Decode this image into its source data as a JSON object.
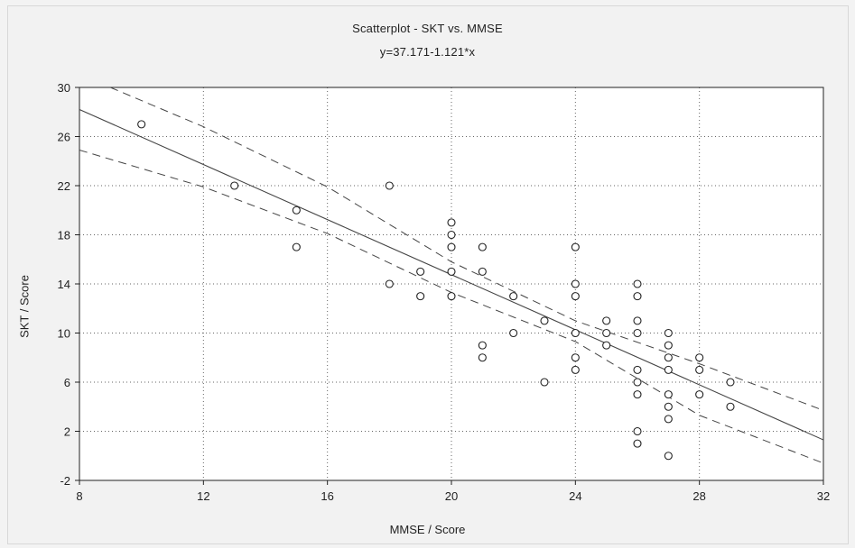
{
  "chart_data": {
    "type": "scatter",
    "title": "Scatterplot - SKT vs. MMSE",
    "subtitle": "y=37.171-1.121*x",
    "xlabel": "MMSE / Score",
    "ylabel": "SKT / Score",
    "xlim": [
      8,
      32
    ],
    "ylim": [
      -2,
      30
    ],
    "xticks": [
      8,
      12,
      16,
      20,
      24,
      28,
      32
    ],
    "yticks": [
      -2,
      2,
      6,
      10,
      14,
      18,
      22,
      26,
      30
    ],
    "grid": true,
    "regression": {
      "intercept": 37.171,
      "slope": -1.121
    },
    "confidence_band": {
      "upper": [
        [
          9,
          30.0
        ],
        [
          12,
          26.8
        ],
        [
          16,
          21.9
        ],
        [
          20,
          15.8
        ],
        [
          24,
          11.0
        ],
        [
          28,
          7.5
        ],
        [
          32,
          3.7
        ]
      ],
      "lower": [
        [
          8,
          24.9
        ],
        [
          12,
          21.9
        ],
        [
          16,
          18.1
        ],
        [
          20,
          13.3
        ],
        [
          24,
          9.3
        ],
        [
          28,
          3.3
        ],
        [
          32,
          -0.6
        ]
      ]
    },
    "points": [
      [
        10,
        27
      ],
      [
        13,
        22
      ],
      [
        15,
        20
      ],
      [
        15,
        17
      ],
      [
        18,
        22
      ],
      [
        18,
        14
      ],
      [
        19,
        15
      ],
      [
        19,
        13
      ],
      [
        20,
        19
      ],
      [
        20,
        18
      ],
      [
        20,
        17
      ],
      [
        20,
        15
      ],
      [
        20,
        13
      ],
      [
        21,
        17
      ],
      [
        21,
        15
      ],
      [
        21,
        9
      ],
      [
        21,
        8
      ],
      [
        22,
        13
      ],
      [
        22,
        10
      ],
      [
        23,
        11
      ],
      [
        23,
        6
      ],
      [
        24,
        17
      ],
      [
        24,
        14
      ],
      [
        24,
        13
      ],
      [
        24,
        10
      ],
      [
        24,
        8
      ],
      [
        24,
        7
      ],
      [
        25,
        11
      ],
      [
        25,
        10
      ],
      [
        25,
        9
      ],
      [
        26,
        14
      ],
      [
        26,
        13
      ],
      [
        26,
        11
      ],
      [
        26,
        10
      ],
      [
        26,
        7
      ],
      [
        26,
        6
      ],
      [
        26,
        5
      ],
      [
        26,
        2
      ],
      [
        26,
        1
      ],
      [
        27,
        10
      ],
      [
        27,
        9
      ],
      [
        27,
        8
      ],
      [
        27,
        7
      ],
      [
        27,
        5
      ],
      [
        27,
        4
      ],
      [
        27,
        3
      ],
      [
        27,
        0
      ],
      [
        28,
        8
      ],
      [
        28,
        7
      ],
      [
        28,
        5
      ],
      [
        29,
        6
      ],
      [
        29,
        4
      ]
    ]
  },
  "colors": {
    "plot_background": "#ffffff",
    "page_background": "#f3f3f3",
    "axis": "#222222",
    "grid": "#666666",
    "line": "#444444",
    "markers": "#222222"
  }
}
